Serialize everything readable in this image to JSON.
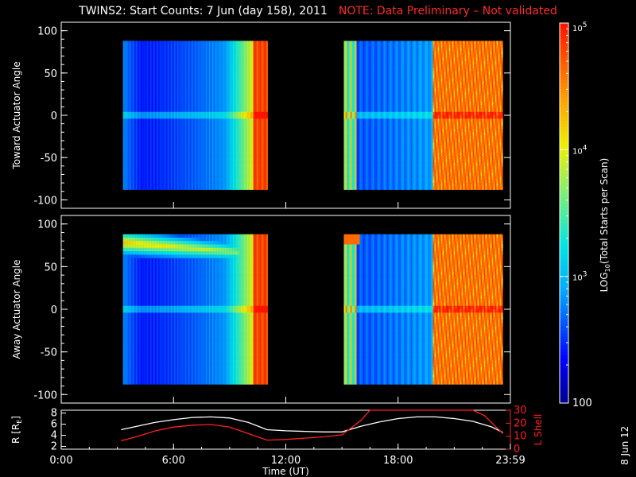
{
  "title": {
    "main": "TWINS2: Start Counts:  7 Jun (day 158), 2011",
    "note": "NOTE: Data Preliminary – Not validated"
  },
  "datestamp": "8 Jun 12",
  "chart_data": [
    {
      "type": "heatmap",
      "name": "toward",
      "ylabel": "Toward Actuator Angle",
      "ylim": [
        -110,
        110
      ],
      "yticks": [
        100,
        50,
        0,
        -50,
        -100
      ],
      "xlim": [
        0,
        24
      ],
      "segments": [
        [
          3.3,
          11.0
        ],
        [
          15.1,
          23.6
        ]
      ],
      "angle_range": [
        -88,
        88
      ]
    },
    {
      "type": "heatmap",
      "name": "away",
      "ylabel": "Away Actuator Angle",
      "ylim": [
        -110,
        110
      ],
      "yticks": [
        100,
        50,
        0,
        -50,
        -100
      ],
      "xlim": [
        0,
        24
      ],
      "segments": [
        [
          3.3,
          11.0
        ],
        [
          15.1,
          23.6
        ]
      ],
      "angle_range": [
        -88,
        88
      ]
    },
    {
      "type": "line",
      "name": "orbit",
      "xlabel": "Time (UT)",
      "xlim": [
        0,
        24
      ],
      "xtick_labels": [
        "0:00",
        "6:00",
        "12:00",
        "18:00",
        "23:59"
      ],
      "xtick_values": [
        0,
        6,
        12,
        18,
        24
      ],
      "ylabel_left": "R [R",
      "ylabel_left_sub": "E",
      "ylabel_left_end": "]",
      "yticks_left": [
        8,
        6,
        4,
        2
      ],
      "ylim_left": [
        1.5,
        8.5
      ],
      "ylabel_right": "L Shell",
      "yticks_right": [
        30,
        20,
        10,
        0
      ],
      "ylim_right": [
        0,
        30
      ],
      "series": [
        {
          "axis": "left",
          "color": "#ffffff",
          "x": [
            3.2,
            5,
            6,
            7,
            8,
            9,
            10,
            11,
            12,
            13,
            14,
            15,
            16,
            17,
            18,
            19,
            20,
            21,
            22,
            23,
            23.6
          ],
          "y": [
            5.0,
            6.3,
            6.8,
            7.2,
            7.3,
            7.1,
            6.3,
            5.0,
            4.8,
            4.7,
            4.6,
            4.6,
            5.6,
            6.4,
            7.0,
            7.3,
            7.3,
            7.0,
            6.5,
            5.5,
            4.5
          ]
        },
        {
          "axis": "right",
          "color": "#ff2020",
          "x": [
            3.2,
            4,
            5,
            6,
            7,
            8,
            9,
            10,
            11,
            12,
            13,
            14,
            15,
            16,
            16.5,
            22,
            22.6,
            23.6
          ],
          "y": [
            6.5,
            9.5,
            14,
            17,
            18.5,
            19,
            17,
            12,
            7,
            7.5,
            8.5,
            9.5,
            11,
            22,
            31,
            31,
            26,
            12
          ]
        }
      ]
    }
  ],
  "colorbar": {
    "label": "LOG",
    "label_sub": "10",
    "label_end": "(Total Starts per Scan)",
    "ticks": [
      {
        "base": "10",
        "exp": "5",
        "value": 5
      },
      {
        "base": "10",
        "exp": "4",
        "value": 4
      },
      {
        "base": "10",
        "exp": "3",
        "value": 3
      },
      {
        "base": "100",
        "exp": "",
        "value": 2
      }
    ],
    "range": [
      2,
      5
    ]
  }
}
